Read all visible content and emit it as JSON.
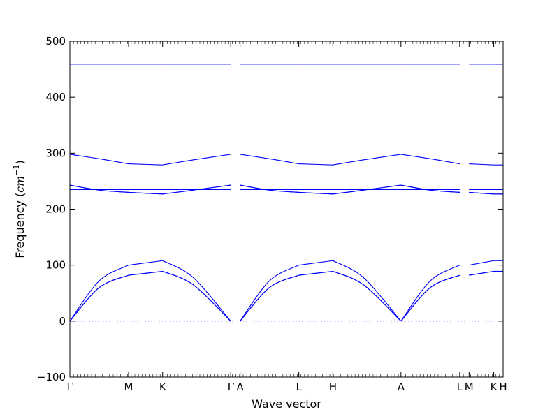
{
  "chart_data": {
    "type": "line",
    "title": "",
    "xlabel": "Wave vector",
    "ylabel": "Frequency ($cm^{-1}$)",
    "ylabel_display": {
      "prefix": "Frequency (",
      "base": "cm",
      "exponent": "−1",
      "suffix": ")"
    },
    "ylim": [
      -100,
      500
    ],
    "xlim": [
      0,
      7.38
    ],
    "yticks": [
      -100,
      0,
      100,
      200,
      300,
      400,
      500
    ],
    "ytick_labels": [
      "−100",
      "0",
      "100",
      "200",
      "300",
      "400",
      "500"
    ],
    "high_symmetry_points": [
      {
        "label": "Γ",
        "x": 0.0
      },
      {
        "label": "M",
        "x": 1.0
      },
      {
        "label": "K",
        "x": 1.58
      },
      {
        "label": "Γ",
        "x": 2.74
      },
      {
        "label": "A",
        "x": 2.9
      },
      {
        "label": "L",
        "x": 3.9
      },
      {
        "label": "H",
        "x": 4.48
      },
      {
        "label": "A",
        "x": 5.64
      },
      {
        "label": "L",
        "x": 6.64
      },
      {
        "label": "M",
        "x": 6.8
      },
      {
        "label": "K",
        "x": 7.22
      },
      {
        "label": "H",
        "x": 7.38
      }
    ],
    "zero_line": {
      "y": 0,
      "style": "dotted"
    },
    "series_color": "#0000ff",
    "segments": [
      {
        "from": "Γ",
        "to": "M",
        "x": [
          0.0,
          1.0
        ],
        "bands": [
          [
            [
              0,
              0
            ],
            [
              0.5,
              60
            ],
            [
              1.0,
              82
            ]
          ],
          [
            [
              0,
              0
            ],
            [
              0.5,
              60
            ],
            [
              1.0,
              82
            ]
          ],
          [
            [
              0,
              0
            ],
            [
              0.5,
              72
            ],
            [
              1.0,
              100
            ]
          ],
          [
            [
              0,
              235
            ],
            [
              1.0,
              235
            ]
          ],
          [
            [
              0,
              235
            ],
            [
              1.0,
              235
            ]
          ],
          [
            [
              0,
              243
            ],
            [
              0.5,
              234
            ],
            [
              1.0,
              230
            ]
          ],
          [
            [
              0,
              243
            ],
            [
              0.5,
              234
            ],
            [
              1.0,
              230
            ]
          ],
          [
            [
              0,
              298
            ],
            [
              0.5,
              290
            ],
            [
              1.0,
              281
            ]
          ],
          [
            [
              0,
              459
            ],
            [
              1.0,
              459
            ]
          ]
        ]
      },
      {
        "from": "M",
        "to": "K",
        "x": [
          1.0,
          1.58
        ],
        "bands": [
          [
            [
              1.0,
              82
            ],
            [
              1.58,
              89
            ]
          ],
          [
            [
              1.0,
              82
            ],
            [
              1.58,
              89
            ]
          ],
          [
            [
              1.0,
              100
            ],
            [
              1.58,
              108
            ]
          ],
          [
            [
              1.0,
              235
            ],
            [
              1.58,
              235
            ]
          ],
          [
            [
              1.0,
              235
            ],
            [
              1.58,
              235
            ]
          ],
          [
            [
              1.0,
              230
            ],
            [
              1.58,
              227
            ]
          ],
          [
            [
              1.0,
              230
            ],
            [
              1.58,
              227
            ]
          ],
          [
            [
              1.0,
              281
            ],
            [
              1.58,
              279
            ]
          ],
          [
            [
              1.0,
              459
            ],
            [
              1.58,
              459
            ]
          ]
        ]
      },
      {
        "from": "K",
        "to": "Γ",
        "x": [
          1.58,
          2.74
        ],
        "bands": [
          [
            [
              1.58,
              89
            ],
            [
              2.1,
              65
            ],
            [
              2.74,
              0
            ]
          ],
          [
            [
              1.58,
              89
            ],
            [
              2.1,
              65
            ],
            [
              2.74,
              0
            ]
          ],
          [
            [
              1.58,
              108
            ],
            [
              2.1,
              78
            ],
            [
              2.74,
              0
            ]
          ],
          [
            [
              1.58,
              235
            ],
            [
              2.74,
              235
            ]
          ],
          [
            [
              1.58,
              235
            ],
            [
              2.74,
              235
            ]
          ],
          [
            [
              1.58,
              227
            ],
            [
              2.1,
              234
            ],
            [
              2.74,
              243
            ]
          ],
          [
            [
              1.58,
              227
            ],
            [
              2.1,
              234
            ],
            [
              2.74,
              243
            ]
          ],
          [
            [
              1.58,
              279
            ],
            [
              2.1,
              288
            ],
            [
              2.74,
              298
            ]
          ],
          [
            [
              1.58,
              459
            ],
            [
              2.74,
              459
            ]
          ]
        ]
      },
      {
        "from": "A",
        "to": "L",
        "x": [
          2.9,
          3.9
        ],
        "bands": [
          [
            [
              2.9,
              0
            ],
            [
              3.4,
              60
            ],
            [
              3.9,
              82
            ]
          ],
          [
            [
              2.9,
              0
            ],
            [
              3.4,
              60
            ],
            [
              3.9,
              82
            ]
          ],
          [
            [
              2.9,
              0
            ],
            [
              3.4,
              72
            ],
            [
              3.9,
              100
            ]
          ],
          [
            [
              2.9,
              235
            ],
            [
              3.9,
              235
            ]
          ],
          [
            [
              2.9,
              235
            ],
            [
              3.9,
              235
            ]
          ],
          [
            [
              2.9,
              243
            ],
            [
              3.4,
              234
            ],
            [
              3.9,
              230
            ]
          ],
          [
            [
              2.9,
              243
            ],
            [
              3.4,
              234
            ],
            [
              3.9,
              230
            ]
          ],
          [
            [
              2.9,
              298
            ],
            [
              3.4,
              290
            ],
            [
              3.9,
              281
            ]
          ],
          [
            [
              2.9,
              459
            ],
            [
              3.9,
              459
            ]
          ]
        ]
      },
      {
        "from": "L",
        "to": "H",
        "x": [
          3.9,
          4.48
        ],
        "bands": [
          [
            [
              3.9,
              82
            ],
            [
              4.48,
              89
            ]
          ],
          [
            [
              3.9,
              82
            ],
            [
              4.48,
              89
            ]
          ],
          [
            [
              3.9,
              100
            ],
            [
              4.48,
              108
            ]
          ],
          [
            [
              3.9,
              235
            ],
            [
              4.48,
              235
            ]
          ],
          [
            [
              3.9,
              235
            ],
            [
              4.48,
              235
            ]
          ],
          [
            [
              3.9,
              230
            ],
            [
              4.48,
              227
            ]
          ],
          [
            [
              3.9,
              230
            ],
            [
              4.48,
              227
            ]
          ],
          [
            [
              3.9,
              281
            ],
            [
              4.48,
              279
            ]
          ],
          [
            [
              3.9,
              459
            ],
            [
              4.48,
              459
            ]
          ]
        ]
      },
      {
        "from": "H",
        "to": "A",
        "x": [
          4.48,
          5.64
        ],
        "bands": [
          [
            [
              4.48,
              89
            ],
            [
              5.0,
              65
            ],
            [
              5.64,
              0
            ]
          ],
          [
            [
              4.48,
              89
            ],
            [
              5.0,
              65
            ],
            [
              5.64,
              0
            ]
          ],
          [
            [
              4.48,
              108
            ],
            [
              5.0,
              78
            ],
            [
              5.64,
              0
            ]
          ],
          [
            [
              4.48,
              235
            ],
            [
              5.64,
              235
            ]
          ],
          [
            [
              4.48,
              235
            ],
            [
              5.64,
              235
            ]
          ],
          [
            [
              4.48,
              227
            ],
            [
              5.0,
              234
            ],
            [
              5.64,
              243
            ]
          ],
          [
            [
              4.48,
              227
            ],
            [
              5.0,
              234
            ],
            [
              5.64,
              243
            ]
          ],
          [
            [
              4.48,
              279
            ],
            [
              5.0,
              288
            ],
            [
              5.64,
              298
            ]
          ],
          [
            [
              4.48,
              459
            ],
            [
              5.64,
              459
            ]
          ]
        ]
      },
      {
        "from": "A",
        "to": "L",
        "x": [
          5.64,
          6.64
        ],
        "bands": [
          [
            [
              5.64,
              0
            ],
            [
              6.14,
              60
            ],
            [
              6.64,
              82
            ]
          ],
          [
            [
              5.64,
              0
            ],
            [
              6.14,
              60
            ],
            [
              6.64,
              82
            ]
          ],
          [
            [
              5.64,
              0
            ],
            [
              6.14,
              72
            ],
            [
              6.64,
              100
            ]
          ],
          [
            [
              5.64,
              235
            ],
            [
              6.64,
              235
            ]
          ],
          [
            [
              5.64,
              235
            ],
            [
              6.64,
              235
            ]
          ],
          [
            [
              5.64,
              243
            ],
            [
              6.14,
              234
            ],
            [
              6.64,
              230
            ]
          ],
          [
            [
              5.64,
              243
            ],
            [
              6.14,
              234
            ],
            [
              6.64,
              230
            ]
          ],
          [
            [
              5.64,
              298
            ],
            [
              6.14,
              290
            ],
            [
              6.64,
              281
            ]
          ],
          [
            [
              5.64,
              459
            ],
            [
              6.64,
              459
            ]
          ]
        ]
      },
      {
        "from": "M",
        "to": "K",
        "x": [
          6.8,
          7.22
        ],
        "bands": [
          [
            [
              6.8,
              82
            ],
            [
              7.22,
              89
            ]
          ],
          [
            [
              6.8,
              82
            ],
            [
              7.22,
              89
            ]
          ],
          [
            [
              6.8,
              100
            ],
            [
              7.22,
              108
            ]
          ],
          [
            [
              6.8,
              235
            ],
            [
              7.22,
              235
            ]
          ],
          [
            [
              6.8,
              235
            ],
            [
              7.22,
              235
            ]
          ],
          [
            [
              6.8,
              230
            ],
            [
              7.22,
              227
            ]
          ],
          [
            [
              6.8,
              230
            ],
            [
              7.22,
              227
            ]
          ],
          [
            [
              6.8,
              281
            ],
            [
              7.22,
              279
            ]
          ],
          [
            [
              6.8,
              459
            ],
            [
              7.22,
              459
            ]
          ]
        ]
      },
      {
        "from": "H",
        "to": "H",
        "x": [
          7.22,
          7.38
        ],
        "bands": [
          [
            [
              7.22,
              89
            ],
            [
              7.38,
              89
            ]
          ],
          [
            [
              7.22,
              89
            ],
            [
              7.38,
              89
            ]
          ],
          [
            [
              7.22,
              108
            ],
            [
              7.38,
              108
            ]
          ],
          [
            [
              7.22,
              235
            ],
            [
              7.38,
              235
            ]
          ],
          [
            [
              7.22,
              235
            ],
            [
              7.38,
              235
            ]
          ],
          [
            [
              7.22,
              227
            ],
            [
              7.38,
              227
            ]
          ],
          [
            [
              7.22,
              227
            ],
            [
              7.38,
              227
            ]
          ],
          [
            [
              7.22,
              279
            ],
            [
              7.38,
              279
            ]
          ],
          [
            [
              7.22,
              459
            ],
            [
              7.38,
              459
            ]
          ]
        ]
      }
    ]
  }
}
